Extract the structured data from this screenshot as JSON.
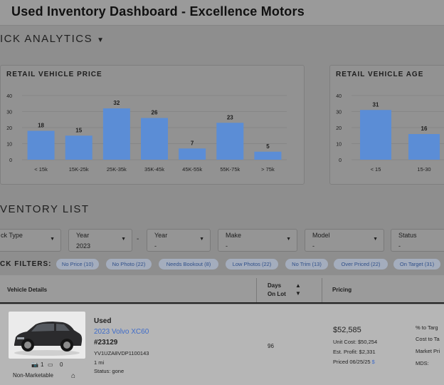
{
  "page": {
    "title": "Used Inventory Dashboard - Excellence Motors"
  },
  "analytics": {
    "heading": "ICK ANALYTICS",
    "caret_icon": "caret-down-icon"
  },
  "charts": {
    "price": {
      "title": "RETAIL VEHICLE PRICE"
    },
    "age": {
      "title": "RETAIL VEHICLE AGE"
    }
  },
  "chart_data": [
    {
      "type": "bar",
      "title": "RETAIL VEHICLE PRICE",
      "categories": [
        "< 15k",
        "15K-25k",
        "25K-35k",
        "35K-45k",
        "45K-55k",
        "55K-75k",
        "> 75k"
      ],
      "values": [
        18,
        15,
        32,
        26,
        7,
        23,
        5
      ],
      "yticks": [
        0,
        10,
        20,
        30,
        40
      ],
      "ylim": [
        0,
        40
      ],
      "grid": true,
      "color": "#5b8dd6"
    },
    {
      "type": "bar",
      "title": "RETAIL VEHICLE AGE",
      "categories": [
        "< 15",
        "15-30"
      ],
      "values": [
        31,
        16
      ],
      "yticks": [
        0,
        10,
        20,
        30,
        40
      ],
      "ylim": [
        0,
        40
      ],
      "grid": true,
      "color": "#5b8dd6"
    }
  ],
  "inventory": {
    "heading": "VENTORY LIST",
    "filters": {
      "stock_type": {
        "label": "ck Type",
        "value": ""
      },
      "year_from": {
        "label": "Year",
        "value": "2023"
      },
      "year_to": {
        "label": "Year",
        "value": "-"
      },
      "make": {
        "label": "Make",
        "value": "-"
      },
      "model": {
        "label": "Model",
        "value": "-"
      },
      "status": {
        "label": "Status",
        "value": "-"
      },
      "range_sep": "-"
    },
    "quick_filters_label": "CK FILTERS:",
    "quick_filters": [
      "No Price (10)",
      "No Photo (22)",
      "Needs Bookout (8)",
      "Low Photos (22)",
      "No Trim (13)",
      "Over Priced (22)",
      "On Target (31)"
    ],
    "columns": {
      "vehicle": "Vehicle Details",
      "days_1": "Days",
      "days_2": "On Lot",
      "pricing": "Pricing"
    },
    "rows": [
      {
        "condition": "Used",
        "name": "2023 Volvo XC60",
        "stock": "#23129",
        "vin": "YV1UZA8VDP1100143",
        "miles": "1 mi",
        "status": "Status: gone",
        "photos": "1",
        "videos": "0",
        "marketable": "Non-Marketable",
        "days_on_lot": "96",
        "price": "$52,585",
        "unit_cost": "Unit Cost: $50,254",
        "est_profit": "Est. Profit: $2,331",
        "priced_date": "Priced 06/25/25",
        "dollar_link": "$",
        "metrics": [
          "% to Targ",
          "Cost to Ta",
          "Market Pri",
          "MDS:"
        ]
      }
    ]
  }
}
